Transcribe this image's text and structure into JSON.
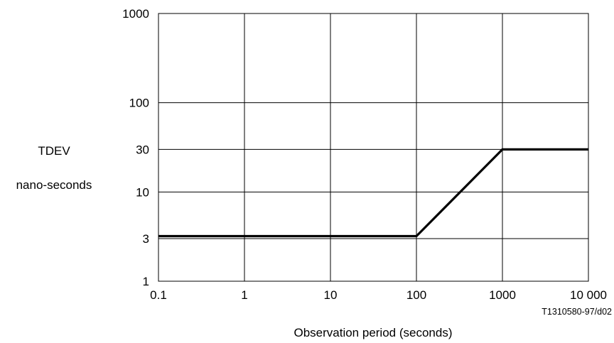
{
  "chart_data": {
    "type": "line",
    "ylabel_lines": [
      "TDEV",
      "nano-seconds"
    ],
    "xlabel": "Observation period (seconds)",
    "figure_id": "T1310580-97/d02",
    "x_scale": "log",
    "y_scale": "log",
    "xlim": [
      0.1,
      10000
    ],
    "ylim": [
      1,
      1000
    ],
    "grid": true,
    "x_ticks": [
      {
        "value": 0.1,
        "label": "0.1"
      },
      {
        "value": 1,
        "label": "1"
      },
      {
        "value": 10,
        "label": "10"
      },
      {
        "value": 100,
        "label": "100"
      },
      {
        "value": 1000,
        "label": "1000"
      },
      {
        "value": 10000,
        "label": "10 000"
      }
    ],
    "y_ticks": [
      {
        "value": 1,
        "label": "1",
        "grid": true
      },
      {
        "value": 3,
        "label": "3",
        "grid": true
      },
      {
        "value": 10,
        "label": "10",
        "grid": true
      },
      {
        "value": 30,
        "label": "30",
        "grid": true
      },
      {
        "value": 100,
        "label": "100",
        "grid": true
      },
      {
        "value": 1000,
        "label": "1000",
        "grid": true
      }
    ],
    "series": [
      {
        "x": [
          0.1,
          100,
          1000,
          10000
        ],
        "y": [
          3.2,
          3.2,
          30,
          30
        ],
        "color": "#000000"
      }
    ]
  }
}
